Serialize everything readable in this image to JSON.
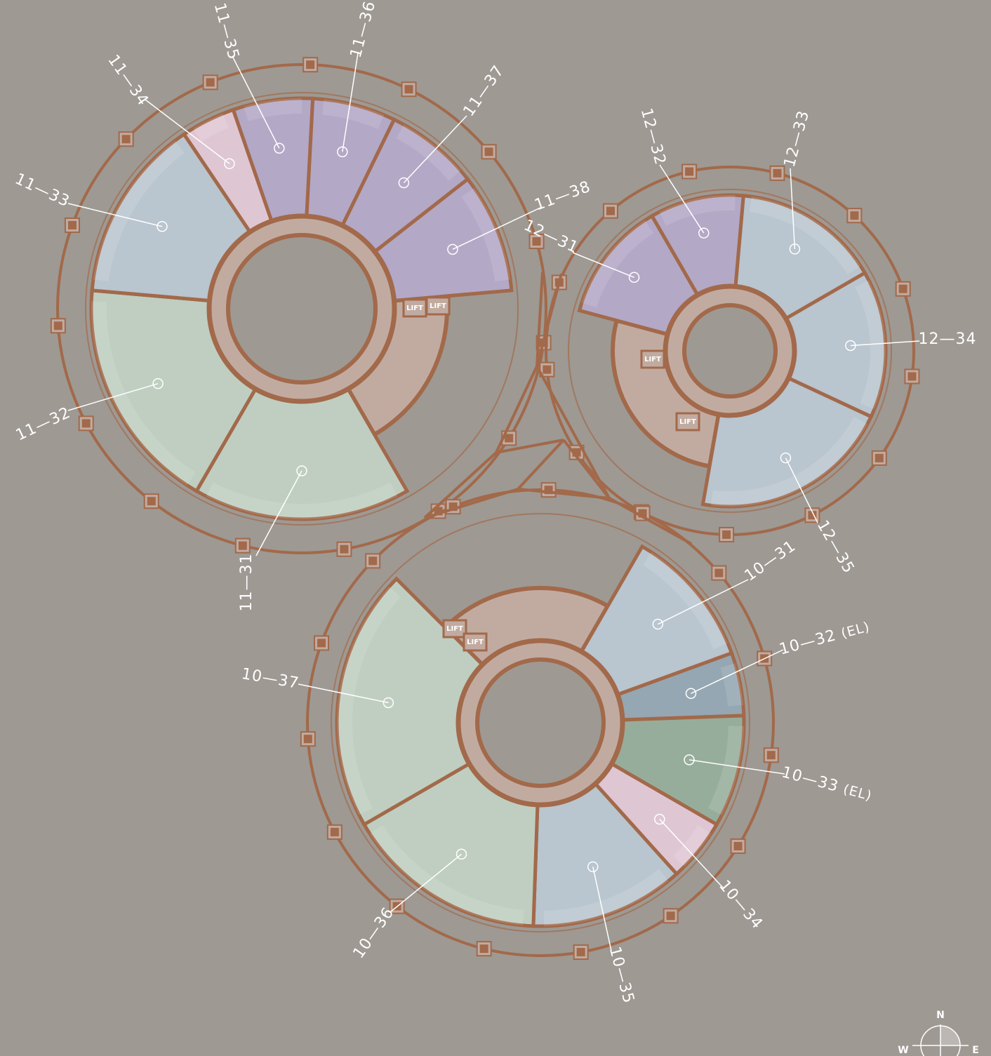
{
  "towers": [
    {
      "units": [
        {
          "label": "11—31"
        },
        {
          "label": "11—32"
        },
        {
          "label": "11—33"
        },
        {
          "label": "11—34"
        },
        {
          "label": "11—35"
        },
        {
          "label": "11—36"
        },
        {
          "label": "11—37"
        },
        {
          "label": "11—38"
        }
      ],
      "lifts": [
        "LIFT",
        "LIFT"
      ]
    },
    {
      "units": [
        {
          "label": "12—31"
        },
        {
          "label": "12—32"
        },
        {
          "label": "12—33"
        },
        {
          "label": "12—34"
        },
        {
          "label": "12—35"
        }
      ],
      "lifts": [
        "LIFT",
        "LIFT"
      ]
    },
    {
      "units": [
        {
          "label": "10—31"
        },
        {
          "label": "10—32",
          "suffix": "(EL)"
        },
        {
          "label": "10—33",
          "suffix": "(EL)"
        },
        {
          "label": "10—34"
        },
        {
          "label": "10—35"
        },
        {
          "label": "10—36"
        },
        {
          "label": "10—37"
        }
      ],
      "lifts": [
        "LIFT",
        "LIFT"
      ]
    }
  ],
  "compass": {
    "north": "N",
    "west": "W",
    "east": "E"
  }
}
